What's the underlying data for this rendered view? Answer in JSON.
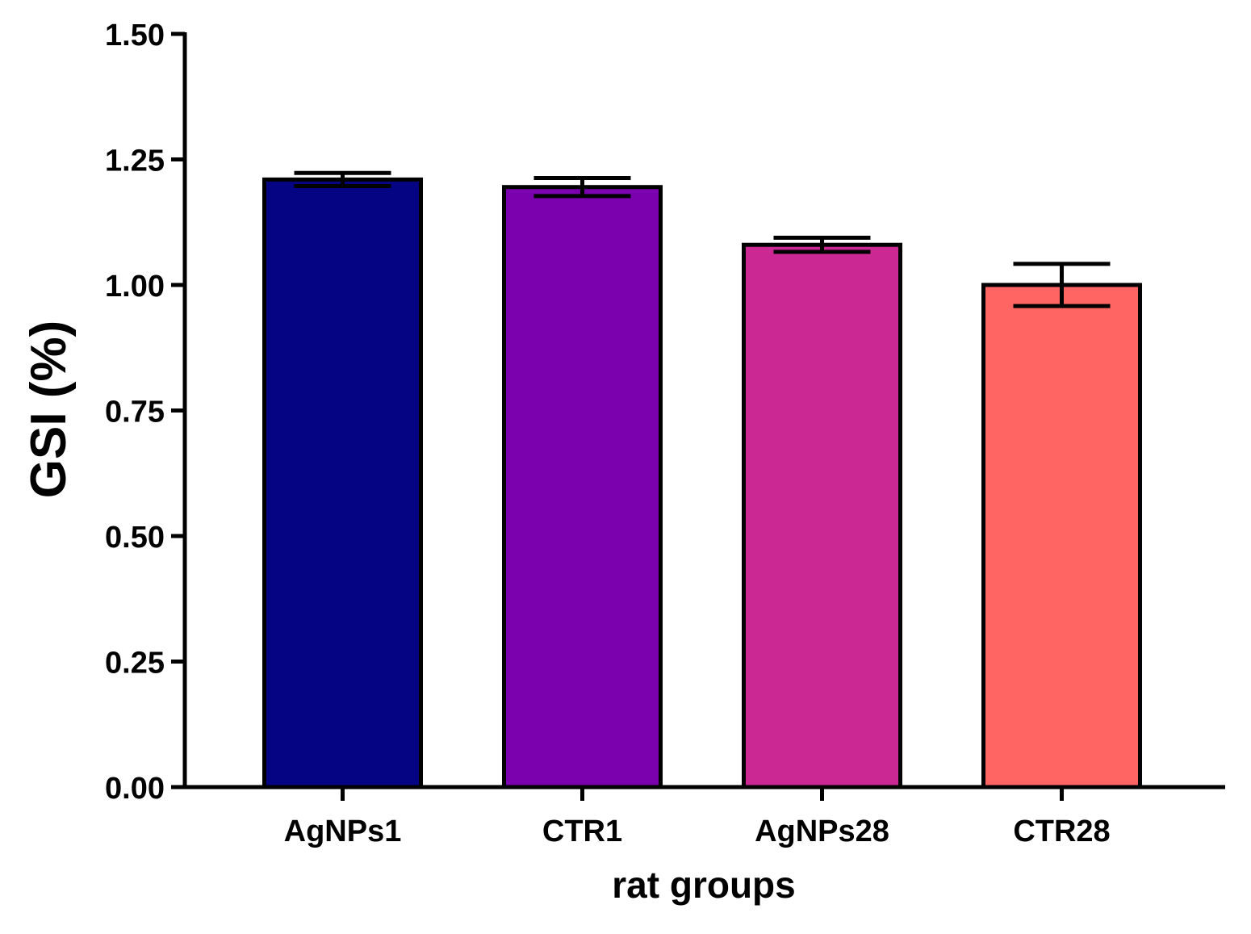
{
  "chart_data": {
    "type": "bar",
    "title": "",
    "xlabel": "rat groups",
    "ylabel": "GSI (%)",
    "ylim": [
      0,
      1.5
    ],
    "yticks": [
      0,
      0.25,
      0.5,
      0.75,
      1.0,
      1.25,
      1.5
    ],
    "ytick_labels": [
      "0.00",
      "0.25",
      "0.50",
      "0.75",
      "1.00",
      "1.25",
      "1.50"
    ],
    "categories": [
      "AgNPs1",
      "CTR1",
      "AgNPs28",
      "CTR28"
    ],
    "values": [
      1.21,
      1.195,
      1.08,
      1.0
    ],
    "errors": [
      0.013,
      0.018,
      0.014,
      0.042
    ],
    "colors": [
      "#050584",
      "#7B00AE",
      "#CC2894",
      "#FF6563"
    ],
    "grid": false,
    "legend": "none"
  }
}
